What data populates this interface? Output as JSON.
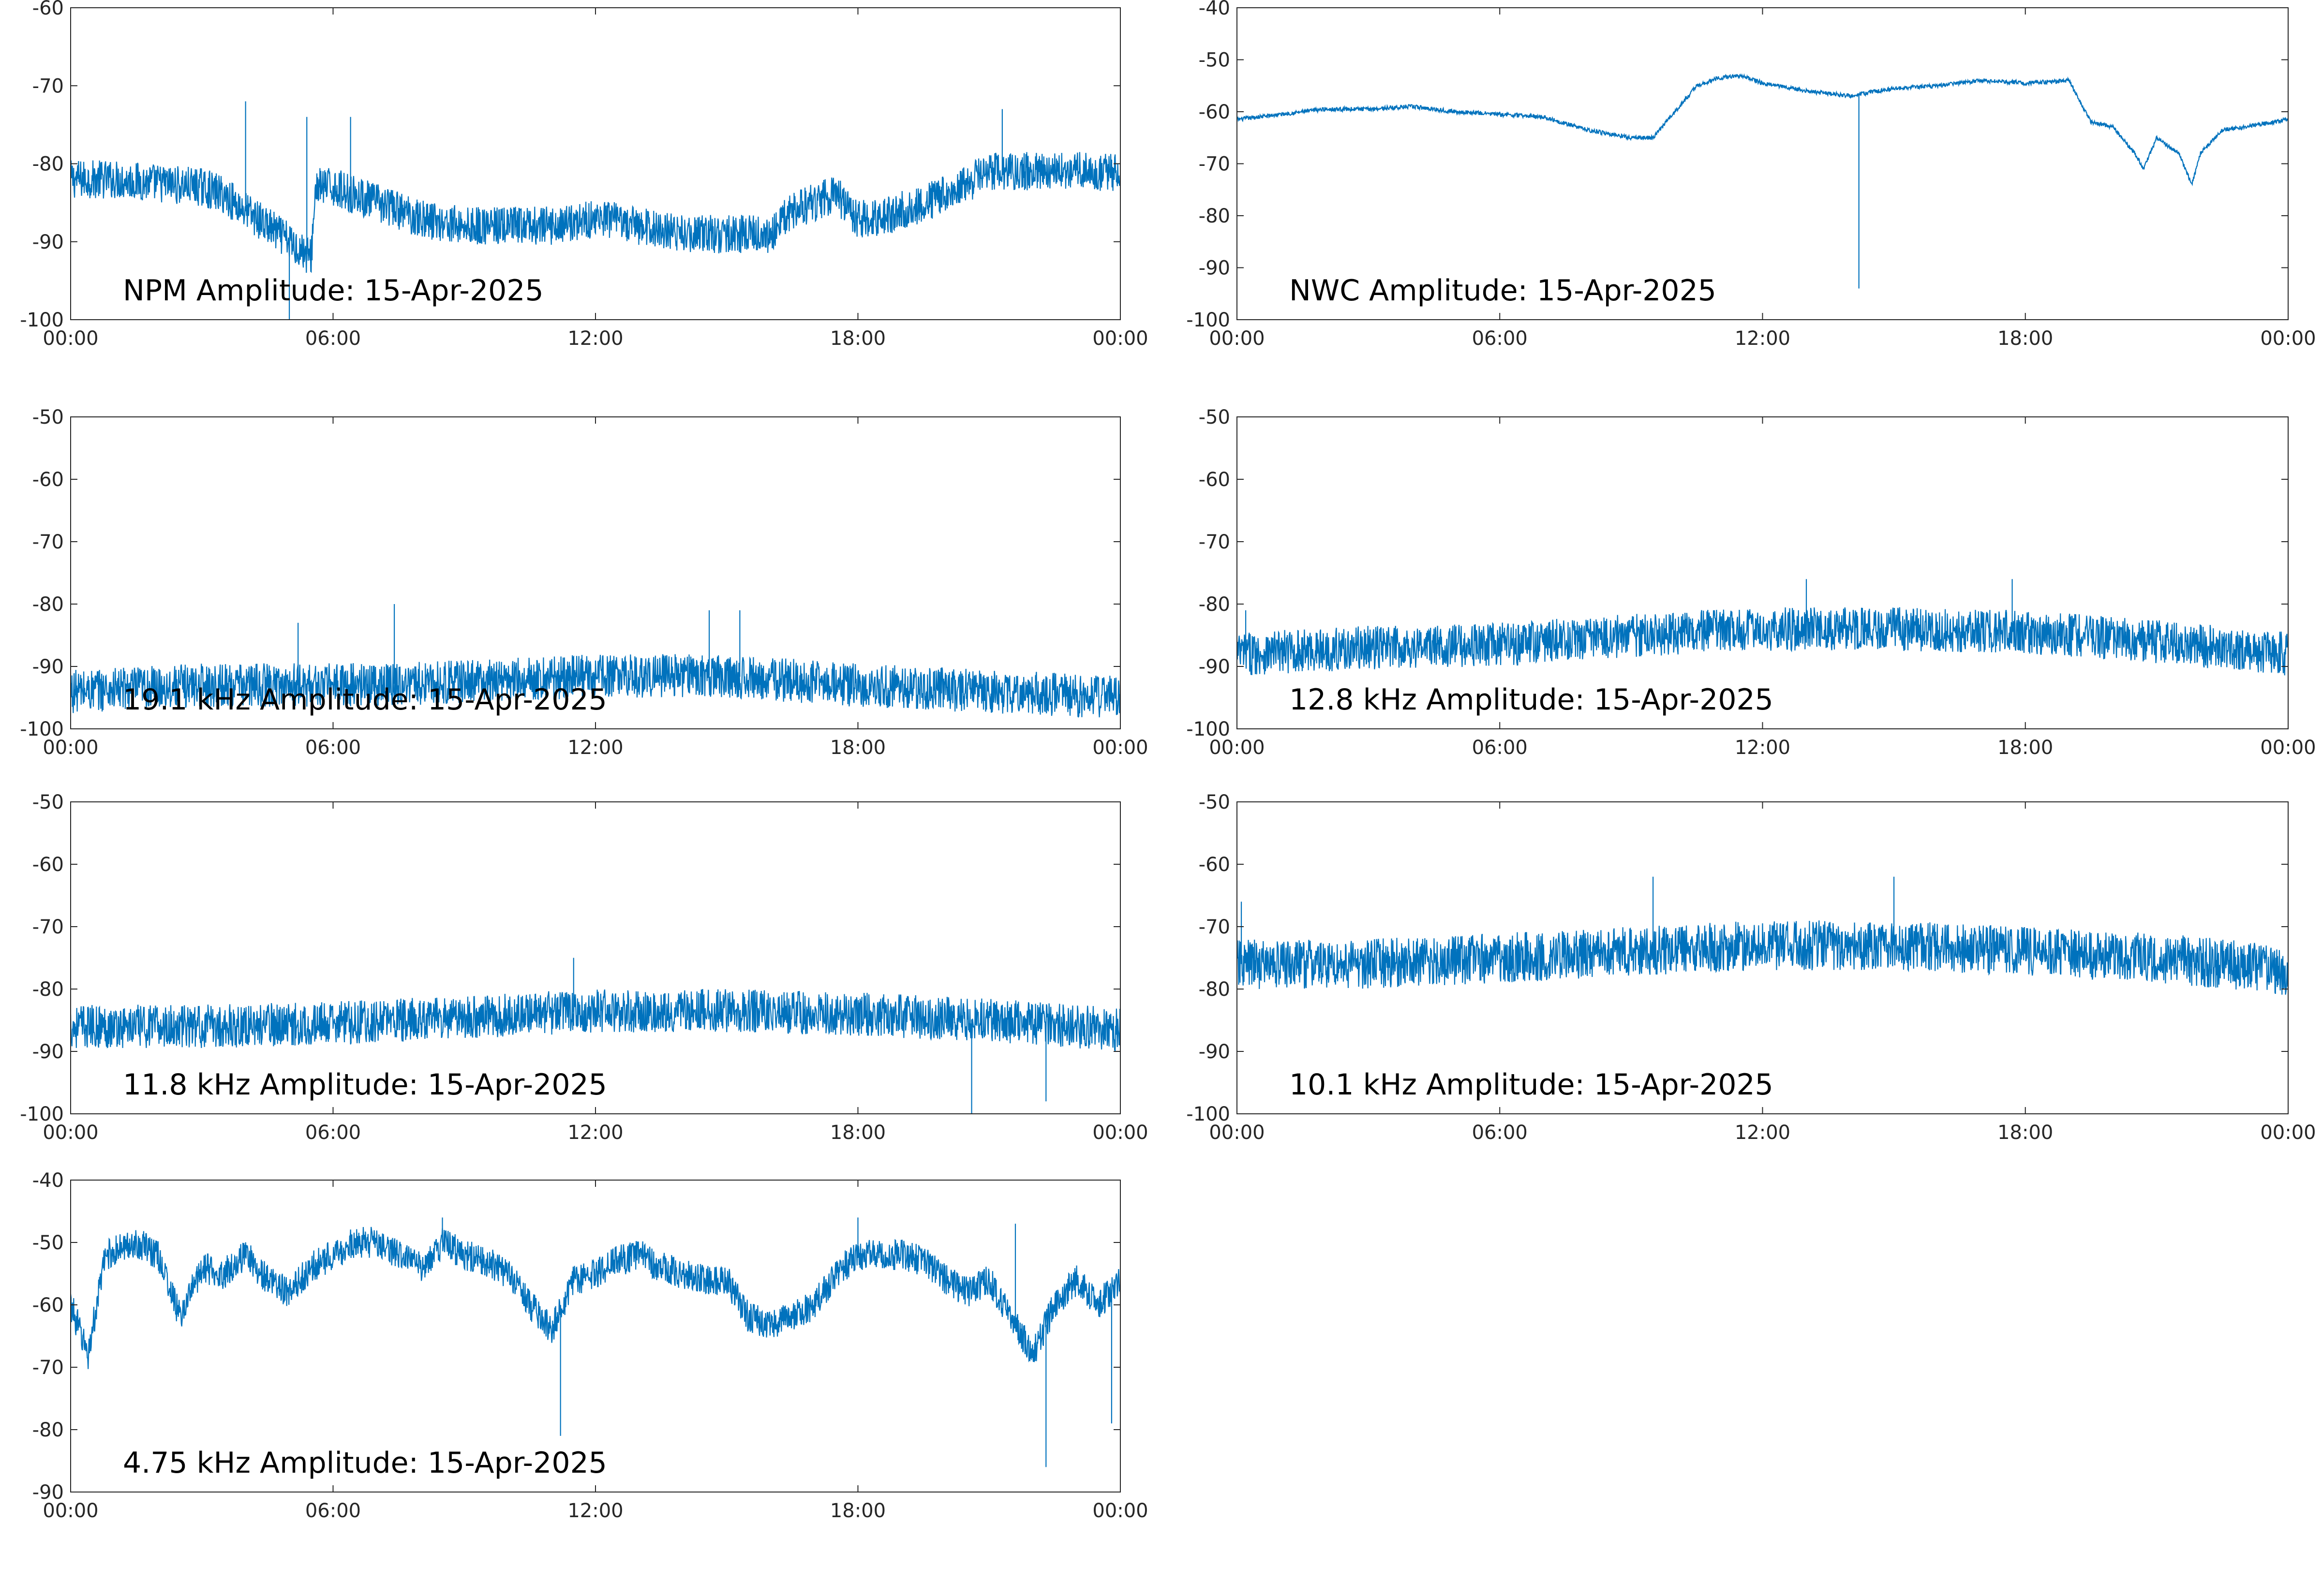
{
  "figure": {
    "line_color": "#0072bd",
    "axis_color": "#262626",
    "background": "#ffffff"
  },
  "chart_data": [
    {
      "type": "line",
      "title": "NPM Amplitude: 15-Apr-2025",
      "xlabel": "",
      "ylabel": "",
      "x_ticks": [
        "00:00",
        "06:00",
        "12:00",
        "18:00",
        "00:00"
      ],
      "y_ticks": [
        -60,
        -70,
        -80,
        -90,
        -100
      ],
      "ylim": [
        -100,
        -60
      ],
      "xlim_hours": [
        0,
        24
      ],
      "grid": false,
      "series": [
        {
          "x_hours": [
            0,
            1,
            2,
            3,
            3.5,
            4,
            4.5,
            5,
            5.5,
            5.6,
            6,
            7,
            8,
            9,
            10,
            11,
            12,
            13,
            14,
            15,
            16,
            16.5,
            17,
            17.5,
            18,
            18.5,
            19,
            20,
            21,
            22,
            23,
            24
          ],
          "values": [
            -82,
            -82,
            -82.5,
            -83,
            -84,
            -86,
            -88,
            -90,
            -92,
            -83,
            -83,
            -85,
            -87,
            -88,
            -88,
            -88,
            -87,
            -88,
            -89,
            -89,
            -89,
            -86,
            -85,
            -84,
            -87,
            -87,
            -86,
            -84,
            -81,
            -81,
            -81,
            -81
          ],
          "noise": 2.5,
          "spikes": [
            {
              "x_hours": 4,
              "value": -72
            },
            {
              "x_hours": 5,
              "value": -100
            },
            {
              "x_hours": 5.4,
              "value": -74
            },
            {
              "x_hours": 6.4,
              "value": -74
            },
            {
              "x_hours": 21.3,
              "value": -73
            }
          ]
        }
      ]
    },
    {
      "type": "line",
      "title": "NWC Amplitude: 15-Apr-2025",
      "xlabel": "",
      "ylabel": "",
      "x_ticks": [
        "00:00",
        "06:00",
        "12:00",
        "18:00",
        "00:00"
      ],
      "y_ticks": [
        -40,
        -50,
        -60,
        -70,
        -80,
        -90,
        -100
      ],
      "ylim": [
        -100,
        -40
      ],
      "xlim_hours": [
        0,
        24
      ],
      "grid": false,
      "series": [
        {
          "x_hours": [
            0,
            1,
            2,
            3,
            4,
            5,
            6,
            7,
            8,
            9,
            9.5,
            10,
            10.5,
            11,
            11.5,
            12,
            13,
            14,
            15,
            16,
            17,
            18,
            19,
            19.5,
            20,
            20.5,
            20.7,
            21,
            21.5,
            21.8,
            22,
            22.5,
            23,
            24
          ],
          "values": [
            -61.5,
            -60.5,
            -59.5,
            -59.5,
            -59,
            -60,
            -60.5,
            -61,
            -63.5,
            -65,
            -65,
            -60,
            -55,
            -53.5,
            -53,
            -54.5,
            -56,
            -57,
            -55.5,
            -55,
            -54,
            -54.5,
            -54,
            -62,
            -63,
            -68,
            -71,
            -65,
            -68,
            -74,
            -68,
            -63.5,
            -63,
            -61.5
          ],
          "noise": 0.4,
          "spikes": [
            {
              "x_hours": 14.2,
              "value": -94
            }
          ]
        }
      ]
    },
    {
      "type": "line",
      "title": "19.1 kHz Amplitude: 15-Apr-2025",
      "xlabel": "",
      "ylabel": "",
      "x_ticks": [
        "00:00",
        "06:00",
        "12:00",
        "18:00",
        "00:00"
      ],
      "y_ticks": [
        -50,
        -60,
        -70,
        -80,
        -90,
        -100
      ],
      "ylim": [
        -100,
        -50
      ],
      "xlim_hours": [
        0,
        24
      ],
      "grid": false,
      "series": [
        {
          "x_hours": [
            0,
            3,
            6,
            9,
            12,
            15,
            18,
            21,
            24
          ],
          "values": [
            -94,
            -93,
            -93,
            -92.5,
            -91.5,
            -91.5,
            -93,
            -94,
            -95
          ],
          "noise": 3.5,
          "spikes": [
            {
              "x_hours": 7.4,
              "value": -80
            },
            {
              "x_hours": 14.6,
              "value": -81
            },
            {
              "x_hours": 15.3,
              "value": -81
            },
            {
              "x_hours": 5.2,
              "value": -83
            }
          ]
        }
      ]
    },
    {
      "type": "line",
      "title": "12.8 kHz Amplitude: 15-Apr-2025",
      "xlabel": "",
      "ylabel": "",
      "x_ticks": [
        "00:00",
        "06:00",
        "12:00",
        "18:00",
        "00:00"
      ],
      "y_ticks": [
        -50,
        -60,
        -70,
        -80,
        -90,
        -100
      ],
      "ylim": [
        -100,
        -50
      ],
      "xlim_hours": [
        0,
        24
      ],
      "grid": false,
      "series": [
        {
          "x_hours": [
            0,
            3,
            6,
            9,
            12,
            15,
            18,
            21,
            24
          ],
          "values": [
            -88,
            -87,
            -86.5,
            -85,
            -84,
            -84,
            -84.5,
            -86,
            -88
          ],
          "noise": 3.5,
          "spikes": [
            {
              "x_hours": 13,
              "value": -76
            },
            {
              "x_hours": 17.7,
              "value": -76
            },
            {
              "x_hours": 0.2,
              "value": -81
            }
          ]
        }
      ]
    },
    {
      "type": "line",
      "title": "11.8 kHz Amplitude: 15-Apr-2025",
      "xlabel": "",
      "ylabel": "",
      "x_ticks": [
        "00:00",
        "06:00",
        "12:00",
        "18:00",
        "00:00"
      ],
      "y_ticks": [
        -50,
        -60,
        -70,
        -80,
        -90,
        -100
      ],
      "ylim": [
        -100,
        -50
      ],
      "xlim_hours": [
        0,
        24
      ],
      "grid": false,
      "series": [
        {
          "x_hours": [
            0,
            3,
            6,
            9,
            12,
            15,
            18,
            21,
            24
          ],
          "values": [
            -86,
            -86,
            -85.5,
            -84.5,
            -83.5,
            -83.5,
            -84,
            -85,
            -86.5
          ],
          "noise": 3.5,
          "spikes": [
            {
              "x_hours": 20.6,
              "value": -100
            },
            {
              "x_hours": 22.3,
              "value": -98
            },
            {
              "x_hours": 11.5,
              "value": -75
            }
          ]
        }
      ]
    },
    {
      "type": "line",
      "title": "10.1 kHz Amplitude: 15-Apr-2025",
      "xlabel": "",
      "ylabel": "",
      "x_ticks": [
        "00:00",
        "06:00",
        "12:00",
        "18:00",
        "00:00"
      ],
      "y_ticks": [
        -50,
        -60,
        -70,
        -80,
        -90,
        -100
      ],
      "ylim": [
        -100,
        -50
      ],
      "xlim_hours": [
        0,
        24
      ],
      "grid": false,
      "series": [
        {
          "x_hours": [
            0,
            3,
            6,
            9,
            12,
            15,
            18,
            21,
            24
          ],
          "values": [
            -76,
            -76,
            -75,
            -74,
            -73,
            -73,
            -74,
            -75,
            -77
          ],
          "noise": 4,
          "spikes": [
            {
              "x_hours": 0.1,
              "value": -66
            },
            {
              "x_hours": 9.5,
              "value": -62
            },
            {
              "x_hours": 15,
              "value": -62
            }
          ]
        }
      ]
    },
    {
      "type": "line",
      "title": "4.75 kHz Amplitude: 15-Apr-2025",
      "xlabel": "",
      "ylabel": "",
      "x_ticks": [
        "00:00",
        "06:00",
        "12:00",
        "18:00",
        "00:00"
      ],
      "y_ticks": [
        -40,
        -50,
        -60,
        -70,
        -80,
        -90
      ],
      "ylim": [
        -90,
        -40
      ],
      "xlim_hours": [
        0,
        24
      ],
      "grid": false,
      "series": [
        {
          "x_hours": [
            0,
            0.4,
            0.8,
            1.5,
            2,
            2.5,
            3,
            3.5,
            4,
            4.5,
            5,
            5.5,
            6,
            6.5,
            7,
            7.5,
            8,
            8.5,
            9,
            9.5,
            10,
            10.5,
            11,
            11.5,
            12,
            12.5,
            13,
            13.5,
            14,
            14.5,
            15,
            15.5,
            16,
            16.5,
            17,
            17.5,
            18,
            18.5,
            19,
            19.5,
            20,
            20.5,
            21,
            21.5,
            22,
            22.5,
            23,
            23.5,
            24
          ],
          "values": [
            -60,
            -68,
            -52,
            -50,
            -52,
            -62,
            -54,
            -55,
            -52,
            -56,
            -58,
            -54,
            -52,
            -50,
            -50,
            -52,
            -54,
            -50,
            -52,
            -53,
            -55,
            -60,
            -64,
            -56,
            -55,
            -53,
            -52,
            -54,
            -55,
            -56,
            -56,
            -62,
            -63,
            -62,
            -60,
            -55,
            -52,
            -52,
            -52,
            -53,
            -56,
            -58,
            -56,
            -62,
            -68,
            -60,
            -56,
            -60,
            -56
          ],
          "noise": 2.5,
          "spikes": [
            {
              "x_hours": 11.2,
              "value": -81
            },
            {
              "x_hours": 22.3,
              "value": -86
            },
            {
              "x_hours": 18,
              "value": -46
            },
            {
              "x_hours": 8.5,
              "value": -46
            },
            {
              "x_hours": 21.6,
              "value": -47
            },
            {
              "x_hours": 23.8,
              "value": -79
            }
          ]
        }
      ]
    }
  ]
}
